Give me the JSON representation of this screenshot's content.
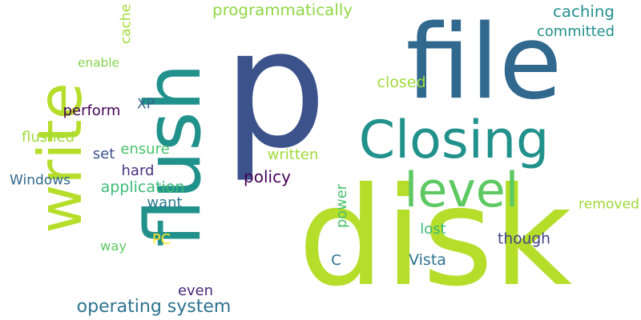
{
  "words": [
    {
      "text": "p",
      "color": "#3b528b"
    },
    {
      "text": "disk",
      "color": "#b5de2b"
    },
    {
      "text": "file",
      "color": "#31688e"
    },
    {
      "text": "flush",
      "color": "#21918c"
    },
    {
      "text": "write",
      "color": "#b5de2b"
    },
    {
      "text": "Closing",
      "color": "#21918c"
    },
    {
      "text": "level",
      "color": "#5ec962"
    },
    {
      "text": "operating system",
      "color": "#2c728e"
    },
    {
      "text": "programmatically",
      "color": "#90d743"
    },
    {
      "text": "caching",
      "color": "#21918c"
    },
    {
      "text": "committed",
      "color": "#21918c"
    },
    {
      "text": "cache",
      "color": "#a0da39"
    },
    {
      "text": "enable",
      "color": "#84d44b"
    },
    {
      "text": "closed",
      "color": "#a0da39"
    },
    {
      "text": "perform",
      "color": "#440154"
    },
    {
      "text": "XP",
      "color": "#33638d"
    },
    {
      "text": "flushed",
      "color": "#a0da39"
    },
    {
      "text": "set",
      "color": "#3b528b"
    },
    {
      "text": "ensure",
      "color": "#4ac16d"
    },
    {
      "text": "written",
      "color": "#a0da39"
    },
    {
      "text": "hard",
      "color": "#46327e"
    },
    {
      "text": "policy",
      "color": "#440154"
    },
    {
      "text": "Windows",
      "color": "#31688e"
    },
    {
      "text": "application",
      "color": "#3aba76"
    },
    {
      "text": "want",
      "color": "#2a788e"
    },
    {
      "text": "power",
      "color": "#4ac16d"
    },
    {
      "text": "removed",
      "color": "#a0da39"
    },
    {
      "text": "lost",
      "color": "#3aba76"
    },
    {
      "text": "PC",
      "color": "#fde725"
    },
    {
      "text": "though",
      "color": "#404387"
    },
    {
      "text": "way",
      "color": "#5ec962"
    },
    {
      "text": "C",
      "color": "#2c728e"
    },
    {
      "text": "Vista",
      "color": "#2c728e"
    },
    {
      "text": "even",
      "color": "#482878"
    }
  ]
}
